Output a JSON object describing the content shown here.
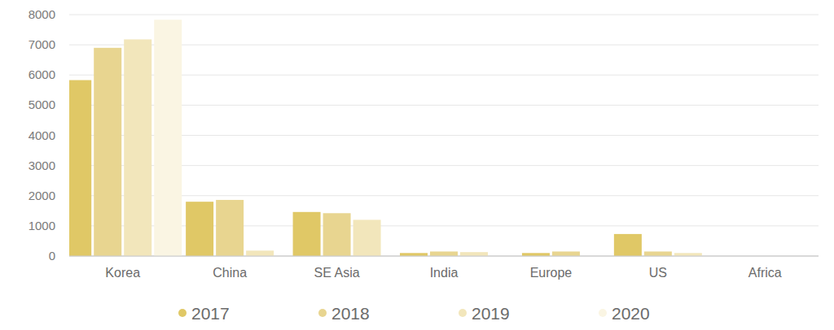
{
  "chart_data": {
    "type": "bar",
    "categories": [
      "Korea",
      "China",
      "SE Asia",
      "India",
      "Europe",
      "US",
      "Africa"
    ],
    "series": [
      {
        "name": "2017",
        "color": "#e0c866",
        "values": [
          5830,
          1800,
          1460,
          100,
          100,
          730,
          0
        ]
      },
      {
        "name": "2018",
        "color": "#e8d590",
        "values": [
          6900,
          1860,
          1420,
          150,
          150,
          150,
          0
        ]
      },
      {
        "name": "2019",
        "color": "#f2e6bb",
        "values": [
          7180,
          180,
          1200,
          130,
          null,
          100,
          0
        ]
      },
      {
        "name": "2020",
        "color": "#faf5e3",
        "values": [
          7830,
          null,
          null,
          null,
          null,
          null,
          null
        ]
      }
    ],
    "ylim": [
      0,
      8000
    ],
    "yticks": [
      0,
      1000,
      2000,
      3000,
      4000,
      5000,
      6000,
      7000,
      8000
    ],
    "grid": true,
    "legend": "bottom"
  }
}
